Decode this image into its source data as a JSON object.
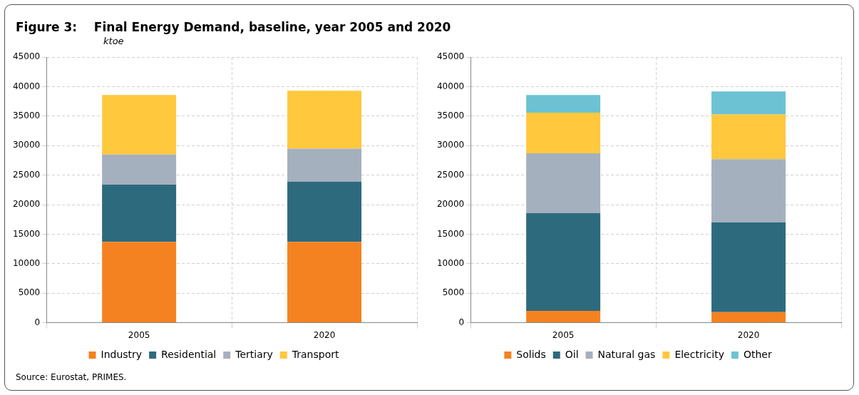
{
  "chart_data": [
    {
      "type": "bar",
      "title": "Figure 3:    Final Energy Demand, baseline, year 2005 and 2020",
      "subtitle": "ktoe",
      "annotations": [
        "Source: Eurostat, PRIMES."
      ],
      "categories": [
        "2005",
        "2020"
      ],
      "stacked": true,
      "ylim": [
        0,
        45000
      ],
      "yticks": [
        0,
        5000,
        10000,
        15000,
        20000,
        25000,
        30000,
        35000,
        40000,
        45000
      ],
      "grid": true,
      "legend": "bottom",
      "series": [
        {
          "name": "Industry",
          "color": "#f58220",
          "values": [
            13700,
            13700
          ]
        },
        {
          "name": "Residential",
          "color": "#2e6a7e",
          "values": [
            9700,
            10200
          ]
        },
        {
          "name": "Tertiary",
          "color": "#a5b0bf",
          "values": [
            5100,
            5600
          ]
        },
        {
          "name": "Transport",
          "color": "#ffc83d",
          "values": [
            10100,
            9800
          ]
        }
      ]
    },
    {
      "type": "bar",
      "categories": [
        "2005",
        "2020"
      ],
      "stacked": true,
      "ylim": [
        0,
        45000
      ],
      "yticks": [
        0,
        5000,
        10000,
        15000,
        20000,
        25000,
        30000,
        35000,
        40000,
        45000
      ],
      "grid": true,
      "legend": "bottom",
      "series": [
        {
          "name": "Solids",
          "color": "#f58220",
          "values": [
            2000,
            1800
          ]
        },
        {
          "name": "Oil",
          "color": "#2e6a7e",
          "values": [
            16600,
            15200
          ]
        },
        {
          "name": "Natural gas",
          "color": "#a5b0bf",
          "values": [
            10100,
            10700
          ]
        },
        {
          "name": "Electricity",
          "color": "#ffc83d",
          "values": [
            6900,
            7600
          ]
        },
        {
          "name": "Other",
          "color": "#6cc2d3",
          "values": [
            3000,
            3900
          ]
        }
      ]
    }
  ]
}
